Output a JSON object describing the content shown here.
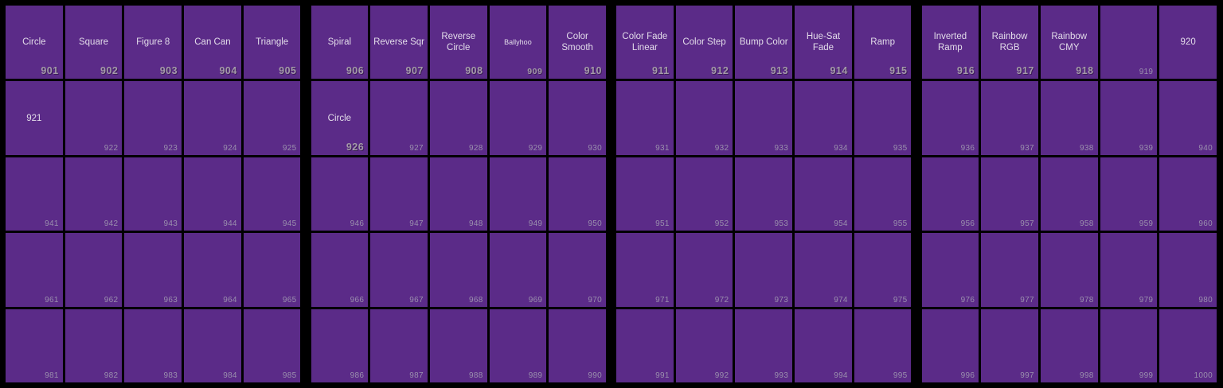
{
  "window": {
    "description": "Effect palette directory grid, numbers 901-1000",
    "banks": 4,
    "columns_per_bank": 5,
    "rows": 5
  },
  "colors": {
    "background": "#000000",
    "cell_fill": "#5b2b88",
    "label_text": "#e2dbe9",
    "occupied_number_text": "#a49aa8",
    "empty_number_text": "#9a8fad"
  },
  "cells": [
    {
      "n": "901",
      "label": "Circle",
      "t": "named"
    },
    {
      "n": "902",
      "label": "Square",
      "t": "named"
    },
    {
      "n": "903",
      "label": "Figure 8",
      "t": "named"
    },
    {
      "n": "904",
      "label": "Can Can",
      "t": "named"
    },
    {
      "n": "905",
      "label": "Triangle",
      "t": "named"
    },
    {
      "n": "906",
      "label": "Spiral",
      "t": "named"
    },
    {
      "n": "907",
      "label": "Reverse Sqr",
      "t": "named"
    },
    {
      "n": "908",
      "label": "Reverse Circle",
      "t": "named"
    },
    {
      "n": "909",
      "label": "Ballyhoo",
      "t": "named",
      "small": true
    },
    {
      "n": "910",
      "label": "Color Smooth",
      "t": "named"
    },
    {
      "n": "911",
      "label": "Color Fade Linear",
      "t": "named"
    },
    {
      "n": "912",
      "label": "Color Step",
      "t": "named"
    },
    {
      "n": "913",
      "label": "Bump Color",
      "t": "named"
    },
    {
      "n": "914",
      "label": "Hue-Sat Fade",
      "t": "named"
    },
    {
      "n": "915",
      "label": "Ramp",
      "t": "named"
    },
    {
      "n": "916",
      "label": "Inverted Ramp",
      "t": "named"
    },
    {
      "n": "917",
      "label": "Rainbow RGB",
      "t": "named"
    },
    {
      "n": "918",
      "label": "Rainbow CMY",
      "t": "named"
    },
    {
      "n": "919",
      "t": "empty"
    },
    {
      "n": "920",
      "t": "self"
    },
    {
      "n": "921",
      "t": "self"
    },
    {
      "n": "922",
      "t": "empty"
    },
    {
      "n": "923",
      "t": "empty"
    },
    {
      "n": "924",
      "t": "empty"
    },
    {
      "n": "925",
      "t": "empty"
    },
    {
      "n": "926",
      "label": "Circle",
      "t": "named"
    },
    {
      "n": "927",
      "t": "empty"
    },
    {
      "n": "928",
      "t": "empty"
    },
    {
      "n": "929",
      "t": "empty"
    },
    {
      "n": "930",
      "t": "empty"
    },
    {
      "n": "931",
      "t": "empty"
    },
    {
      "n": "932",
      "t": "empty"
    },
    {
      "n": "933",
      "t": "empty"
    },
    {
      "n": "934",
      "t": "empty"
    },
    {
      "n": "935",
      "t": "empty"
    },
    {
      "n": "936",
      "t": "empty"
    },
    {
      "n": "937",
      "t": "empty"
    },
    {
      "n": "938",
      "t": "empty"
    },
    {
      "n": "939",
      "t": "empty"
    },
    {
      "n": "940",
      "t": "empty"
    },
    {
      "n": "941",
      "t": "empty"
    },
    {
      "n": "942",
      "t": "empty"
    },
    {
      "n": "943",
      "t": "empty"
    },
    {
      "n": "944",
      "t": "empty"
    },
    {
      "n": "945",
      "t": "empty"
    },
    {
      "n": "946",
      "t": "empty"
    },
    {
      "n": "947",
      "t": "empty"
    },
    {
      "n": "948",
      "t": "empty"
    },
    {
      "n": "949",
      "t": "empty"
    },
    {
      "n": "950",
      "t": "empty"
    },
    {
      "n": "951",
      "t": "empty"
    },
    {
      "n": "952",
      "t": "empty"
    },
    {
      "n": "953",
      "t": "empty"
    },
    {
      "n": "954",
      "t": "empty"
    },
    {
      "n": "955",
      "t": "empty"
    },
    {
      "n": "956",
      "t": "empty"
    },
    {
      "n": "957",
      "t": "empty"
    },
    {
      "n": "958",
      "t": "empty"
    },
    {
      "n": "959",
      "t": "empty"
    },
    {
      "n": "960",
      "t": "empty"
    },
    {
      "n": "961",
      "t": "empty"
    },
    {
      "n": "962",
      "t": "empty"
    },
    {
      "n": "963",
      "t": "empty"
    },
    {
      "n": "964",
      "t": "empty"
    },
    {
      "n": "965",
      "t": "empty"
    },
    {
      "n": "966",
      "t": "empty"
    },
    {
      "n": "967",
      "t": "empty"
    },
    {
      "n": "968",
      "t": "empty"
    },
    {
      "n": "969",
      "t": "empty"
    },
    {
      "n": "970",
      "t": "empty"
    },
    {
      "n": "971",
      "t": "empty"
    },
    {
      "n": "972",
      "t": "empty"
    },
    {
      "n": "973",
      "t": "empty"
    },
    {
      "n": "974",
      "t": "empty"
    },
    {
      "n": "975",
      "t": "empty"
    },
    {
      "n": "976",
      "t": "empty"
    },
    {
      "n": "977",
      "t": "empty"
    },
    {
      "n": "978",
      "t": "empty"
    },
    {
      "n": "979",
      "t": "empty"
    },
    {
      "n": "980",
      "t": "empty"
    },
    {
      "n": "981",
      "t": "empty"
    },
    {
      "n": "982",
      "t": "empty"
    },
    {
      "n": "983",
      "t": "empty"
    },
    {
      "n": "984",
      "t": "empty"
    },
    {
      "n": "985",
      "t": "empty"
    },
    {
      "n": "986",
      "t": "empty"
    },
    {
      "n": "987",
      "t": "empty"
    },
    {
      "n": "988",
      "t": "empty"
    },
    {
      "n": "989",
      "t": "empty"
    },
    {
      "n": "990",
      "t": "empty"
    },
    {
      "n": "991",
      "t": "empty"
    },
    {
      "n": "992",
      "t": "empty"
    },
    {
      "n": "993",
      "t": "empty"
    },
    {
      "n": "994",
      "t": "empty"
    },
    {
      "n": "995",
      "t": "empty"
    },
    {
      "n": "996",
      "t": "empty"
    },
    {
      "n": "997",
      "t": "empty"
    },
    {
      "n": "998",
      "t": "empty"
    },
    {
      "n": "999",
      "t": "empty"
    },
    {
      "n": "1000",
      "t": "empty"
    }
  ]
}
